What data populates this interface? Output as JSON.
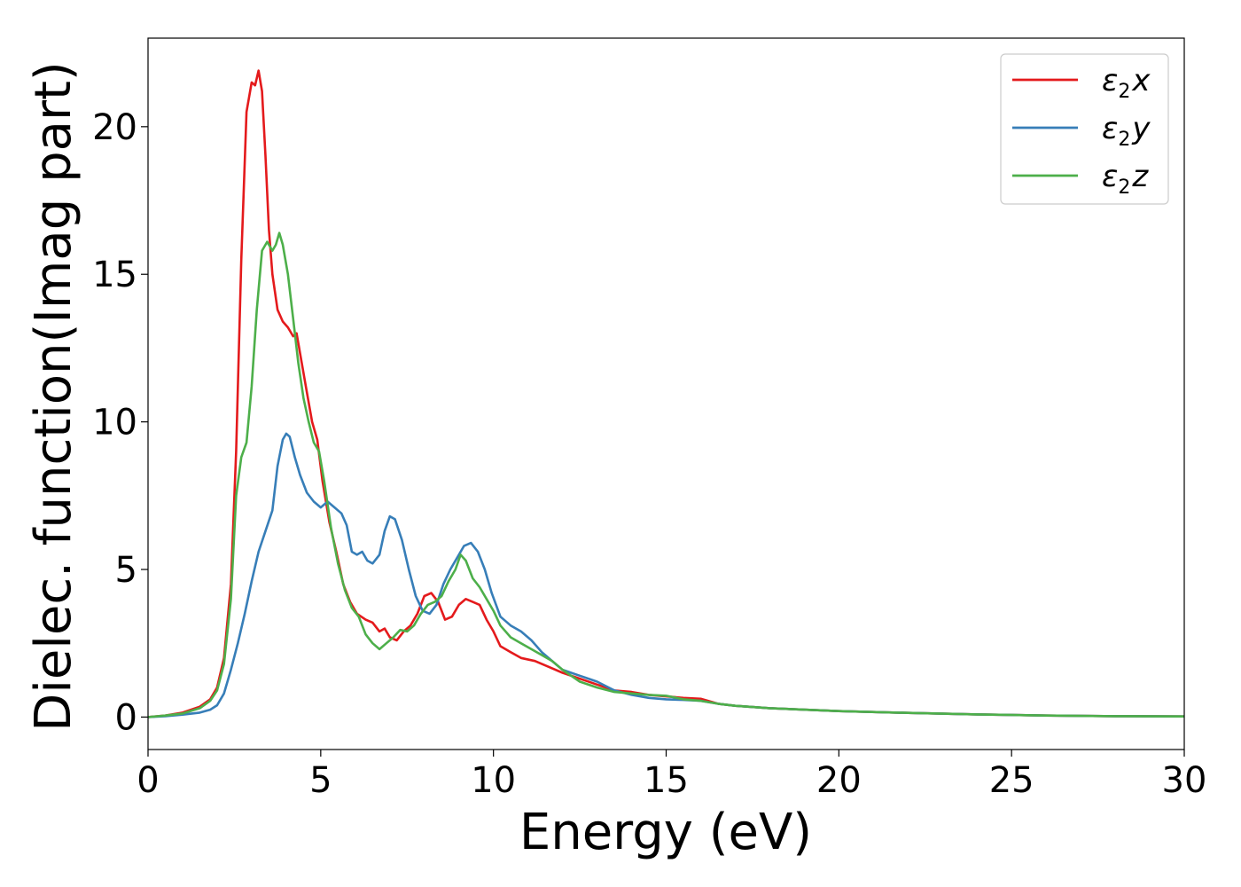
{
  "chart_data": {
    "type": "line",
    "xlabel": "Energy (eV)",
    "ylabel": "Dielec. function(Imag part)",
    "xlim": [
      0,
      30
    ],
    "ylim": [
      -1.1,
      23.0
    ],
    "xticks": [
      "0",
      "5",
      "10",
      "15",
      "20",
      "25",
      "30"
    ],
    "yticks": [
      "0",
      "5",
      "10",
      "15",
      "20"
    ],
    "grid": false,
    "legend_position": "top-right",
    "series": [
      {
        "name": "ε₂x",
        "legend_base": "ε",
        "legend_sub": "2",
        "legend_var": "x",
        "color": "#e41a1c",
        "points": [
          [
            0,
            0
          ],
          [
            0.5,
            0.05
          ],
          [
            1,
            0.15
          ],
          [
            1.5,
            0.35
          ],
          [
            1.8,
            0.6
          ],
          [
            2.0,
            1.0
          ],
          [
            2.2,
            2.0
          ],
          [
            2.4,
            4.5
          ],
          [
            2.55,
            9.0
          ],
          [
            2.7,
            15.5
          ],
          [
            2.85,
            20.5
          ],
          [
            3.0,
            21.5
          ],
          [
            3.1,
            21.4
          ],
          [
            3.2,
            21.9
          ],
          [
            3.3,
            21.2
          ],
          [
            3.4,
            19.0
          ],
          [
            3.5,
            16.5
          ],
          [
            3.6,
            15.0
          ],
          [
            3.75,
            13.8
          ],
          [
            3.9,
            13.4
          ],
          [
            4.05,
            13.2
          ],
          [
            4.2,
            12.9
          ],
          [
            4.3,
            13.0
          ],
          [
            4.45,
            12.0
          ],
          [
            4.6,
            11.0
          ],
          [
            4.75,
            10.0
          ],
          [
            4.9,
            9.4
          ],
          [
            5.05,
            8.0
          ],
          [
            5.25,
            6.6
          ],
          [
            5.45,
            5.6
          ],
          [
            5.65,
            4.5
          ],
          [
            5.85,
            3.9
          ],
          [
            6.05,
            3.5
          ],
          [
            6.3,
            3.3
          ],
          [
            6.5,
            3.2
          ],
          [
            6.7,
            2.9
          ],
          [
            6.85,
            3.0
          ],
          [
            7.0,
            2.7
          ],
          [
            7.2,
            2.6
          ],
          [
            7.4,
            2.9
          ],
          [
            7.6,
            3.1
          ],
          [
            7.8,
            3.5
          ],
          [
            8.0,
            4.1
          ],
          [
            8.2,
            4.2
          ],
          [
            8.4,
            3.9
          ],
          [
            8.6,
            3.3
          ],
          [
            8.8,
            3.4
          ],
          [
            9.0,
            3.8
          ],
          [
            9.2,
            4.0
          ],
          [
            9.4,
            3.9
          ],
          [
            9.6,
            3.8
          ],
          [
            9.8,
            3.3
          ],
          [
            10.0,
            2.9
          ],
          [
            10.2,
            2.4
          ],
          [
            10.5,
            2.2
          ],
          [
            10.8,
            2.0
          ],
          [
            11.2,
            1.9
          ],
          [
            11.6,
            1.7
          ],
          [
            12.0,
            1.5
          ],
          [
            12.5,
            1.3
          ],
          [
            13.0,
            1.1
          ],
          [
            13.5,
            0.9
          ],
          [
            14.0,
            0.85
          ],
          [
            14.5,
            0.75
          ],
          [
            15.0,
            0.7
          ],
          [
            15.5,
            0.65
          ],
          [
            16.0,
            0.62
          ],
          [
            16.5,
            0.45
          ],
          [
            17.0,
            0.38
          ],
          [
            18.0,
            0.3
          ],
          [
            20.0,
            0.2
          ],
          [
            22.0,
            0.14
          ],
          [
            24.0,
            0.09
          ],
          [
            26.0,
            0.05
          ],
          [
            28.0,
            0.03
          ],
          [
            30.0,
            0.02
          ]
        ]
      },
      {
        "name": "ε₂y",
        "legend_base": "ε",
        "legend_sub": "2",
        "legend_var": "y",
        "color": "#377eb8",
        "points": [
          [
            0,
            0
          ],
          [
            0.5,
            0.03
          ],
          [
            1,
            0.08
          ],
          [
            1.5,
            0.15
          ],
          [
            1.8,
            0.25
          ],
          [
            2.0,
            0.4
          ],
          [
            2.2,
            0.8
          ],
          [
            2.4,
            1.6
          ],
          [
            2.6,
            2.5
          ],
          [
            2.8,
            3.5
          ],
          [
            3.0,
            4.6
          ],
          [
            3.2,
            5.6
          ],
          [
            3.4,
            6.3
          ],
          [
            3.6,
            7.0
          ],
          [
            3.75,
            8.5
          ],
          [
            3.9,
            9.4
          ],
          [
            4.0,
            9.6
          ],
          [
            4.1,
            9.5
          ],
          [
            4.25,
            8.8
          ],
          [
            4.4,
            8.2
          ],
          [
            4.6,
            7.6
          ],
          [
            4.8,
            7.3
          ],
          [
            5.0,
            7.1
          ],
          [
            5.2,
            7.3
          ],
          [
            5.4,
            7.1
          ],
          [
            5.6,
            6.9
          ],
          [
            5.75,
            6.5
          ],
          [
            5.9,
            5.6
          ],
          [
            6.05,
            5.5
          ],
          [
            6.2,
            5.6
          ],
          [
            6.35,
            5.3
          ],
          [
            6.5,
            5.2
          ],
          [
            6.7,
            5.5
          ],
          [
            6.85,
            6.3
          ],
          [
            7.0,
            6.8
          ],
          [
            7.15,
            6.7
          ],
          [
            7.35,
            6.0
          ],
          [
            7.55,
            5.0
          ],
          [
            7.75,
            4.1
          ],
          [
            7.95,
            3.6
          ],
          [
            8.15,
            3.5
          ],
          [
            8.35,
            3.8
          ],
          [
            8.55,
            4.5
          ],
          [
            8.75,
            5.0
          ],
          [
            8.95,
            5.4
          ],
          [
            9.15,
            5.8
          ],
          [
            9.35,
            5.9
          ],
          [
            9.55,
            5.6
          ],
          [
            9.75,
            5.0
          ],
          [
            9.95,
            4.2
          ],
          [
            10.2,
            3.4
          ],
          [
            10.5,
            3.1
          ],
          [
            10.8,
            2.9
          ],
          [
            11.1,
            2.6
          ],
          [
            11.4,
            2.2
          ],
          [
            11.7,
            1.9
          ],
          [
            12.0,
            1.6
          ],
          [
            12.5,
            1.4
          ],
          [
            13.0,
            1.2
          ],
          [
            13.5,
            0.9
          ],
          [
            14.0,
            0.75
          ],
          [
            14.5,
            0.65
          ],
          [
            15.0,
            0.6
          ],
          [
            15.5,
            0.58
          ],
          [
            16.0,
            0.55
          ],
          [
            16.5,
            0.45
          ],
          [
            17.0,
            0.38
          ],
          [
            18.0,
            0.3
          ],
          [
            20.0,
            0.2
          ],
          [
            22.0,
            0.14
          ],
          [
            24.0,
            0.09
          ],
          [
            26.0,
            0.05
          ],
          [
            28.0,
            0.03
          ],
          [
            30.0,
            0.02
          ]
        ]
      },
      {
        "name": "ε₂z",
        "legend_base": "ε",
        "legend_sub": "2",
        "legend_var": "z",
        "color": "#4daf4a",
        "points": [
          [
            0,
            0
          ],
          [
            0.5,
            0.05
          ],
          [
            1,
            0.12
          ],
          [
            1.5,
            0.3
          ],
          [
            1.8,
            0.55
          ],
          [
            2.0,
            0.9
          ],
          [
            2.2,
            1.8
          ],
          [
            2.4,
            4.0
          ],
          [
            2.55,
            7.5
          ],
          [
            2.7,
            8.8
          ],
          [
            2.85,
            9.3
          ],
          [
            3.0,
            11.2
          ],
          [
            3.15,
            13.8
          ],
          [
            3.3,
            15.8
          ],
          [
            3.45,
            16.1
          ],
          [
            3.6,
            15.8
          ],
          [
            3.7,
            16.0
          ],
          [
            3.8,
            16.4
          ],
          [
            3.9,
            16.0
          ],
          [
            4.05,
            15.0
          ],
          [
            4.2,
            13.5
          ],
          [
            4.35,
            12.0
          ],
          [
            4.5,
            10.8
          ],
          [
            4.65,
            10.0
          ],
          [
            4.8,
            9.3
          ],
          [
            4.95,
            9.0
          ],
          [
            5.1,
            8.0
          ],
          [
            5.3,
            6.4
          ],
          [
            5.5,
            5.2
          ],
          [
            5.7,
            4.3
          ],
          [
            5.9,
            3.7
          ],
          [
            6.1,
            3.4
          ],
          [
            6.3,
            2.8
          ],
          [
            6.5,
            2.5
          ],
          [
            6.7,
            2.3
          ],
          [
            6.9,
            2.5
          ],
          [
            7.1,
            2.7
          ],
          [
            7.3,
            2.95
          ],
          [
            7.5,
            2.9
          ],
          [
            7.7,
            3.1
          ],
          [
            7.9,
            3.5
          ],
          [
            8.1,
            3.8
          ],
          [
            8.3,
            3.9
          ],
          [
            8.5,
            4.1
          ],
          [
            8.7,
            4.6
          ],
          [
            8.9,
            5.0
          ],
          [
            9.05,
            5.5
          ],
          [
            9.2,
            5.3
          ],
          [
            9.4,
            4.7
          ],
          [
            9.6,
            4.4
          ],
          [
            9.8,
            4.0
          ],
          [
            10.0,
            3.6
          ],
          [
            10.2,
            3.1
          ],
          [
            10.5,
            2.7
          ],
          [
            10.8,
            2.5
          ],
          [
            11.1,
            2.3
          ],
          [
            11.4,
            2.1
          ],
          [
            11.7,
            1.9
          ],
          [
            12.0,
            1.6
          ],
          [
            12.5,
            1.2
          ],
          [
            13.0,
            1.0
          ],
          [
            13.5,
            0.85
          ],
          [
            14.0,
            0.8
          ],
          [
            14.5,
            0.75
          ],
          [
            15.0,
            0.72
          ],
          [
            15.5,
            0.6
          ],
          [
            16.0,
            0.55
          ],
          [
            16.5,
            0.45
          ],
          [
            17.0,
            0.38
          ],
          [
            18.0,
            0.3
          ],
          [
            20.0,
            0.2
          ],
          [
            22.0,
            0.14
          ],
          [
            24.0,
            0.09
          ],
          [
            26.0,
            0.05
          ],
          [
            28.0,
            0.03
          ],
          [
            30.0,
            0.02
          ]
        ]
      }
    ]
  }
}
